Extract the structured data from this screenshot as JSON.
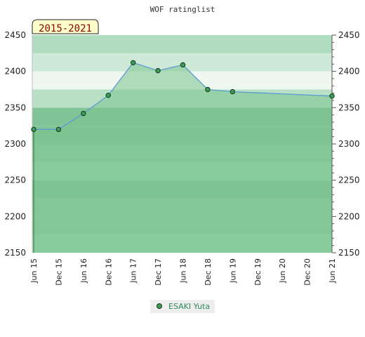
{
  "chart_data": {
    "type": "line",
    "title": "WOF ratinglist",
    "range_label": "2015-2021",
    "categories": [
      "Jun 15",
      "Dec 15",
      "Jun 16",
      "Dec 16",
      "Jun 17",
      "Dec 17",
      "Jun 18",
      "Dec 18",
      "Jun 19",
      "Dec 19",
      "Jun 20",
      "Dec 20",
      "Jun 21"
    ],
    "series": [
      {
        "name": "ESAKI Yuta",
        "x": [
          "Jun 15",
          "Dec 15",
          "Jun 16",
          "Dec 16",
          "Jun 17",
          "Dec 17",
          "Jun 18",
          "Dec 18",
          "Jun 19",
          "Jun 21"
        ],
        "values": [
          2320,
          2320,
          2342,
          2367,
          2412,
          2401,
          2409,
          2375,
          2372,
          2366
        ]
      }
    ],
    "ylim": [
      2150,
      2450
    ],
    "yticks": [
      "2150",
      "2200",
      "2250",
      "2300",
      "2350",
      "2400",
      "2450"
    ],
    "grid": true,
    "legend_position": "bottom",
    "colors": {
      "line": "#5b9bd5",
      "marker_fill": "#3a9a5a",
      "marker_stroke": "#1a3a1a",
      "area": "#7cc490",
      "label_bg": "#ffffcc",
      "legend_text": "#2e8b57"
    }
  }
}
